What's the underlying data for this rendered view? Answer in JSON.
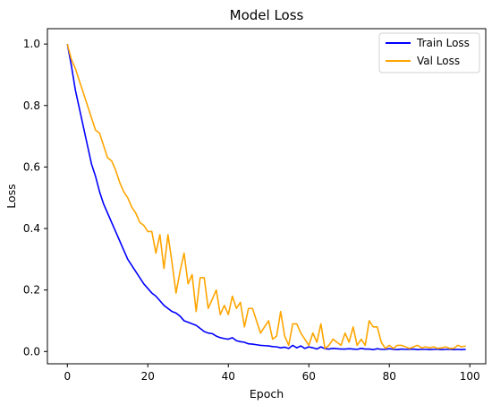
{
  "chart_data": {
    "type": "line",
    "title": "Model Loss",
    "xlabel": "Epoch",
    "ylabel": "Loss",
    "xlim": [
      -4.95,
      103.95
    ],
    "ylim": [
      -0.04,
      1.05
    ],
    "xticks": [
      0,
      20,
      40,
      60,
      80,
      100
    ],
    "yticks": [
      0.0,
      0.2,
      0.4,
      0.6,
      0.8,
      1.0
    ],
    "xtick_labels": [
      "0",
      "20",
      "40",
      "60",
      "80",
      "100"
    ],
    "ytick_labels": [
      "0.0",
      "0.2",
      "0.4",
      "0.6",
      "0.8",
      "1.0"
    ],
    "grid": false,
    "legend_position": "top-right",
    "x": [
      0,
      1,
      2,
      3,
      4,
      5,
      6,
      7,
      8,
      9,
      10,
      11,
      12,
      13,
      14,
      15,
      16,
      17,
      18,
      19,
      20,
      21,
      22,
      23,
      24,
      25,
      26,
      27,
      28,
      29,
      30,
      31,
      32,
      33,
      34,
      35,
      36,
      37,
      38,
      39,
      40,
      41,
      42,
      43,
      44,
      45,
      46,
      47,
      48,
      49,
      50,
      51,
      52,
      53,
      54,
      55,
      56,
      57,
      58,
      59,
      60,
      61,
      62,
      63,
      64,
      65,
      66,
      67,
      68,
      69,
      70,
      71,
      72,
      73,
      74,
      75,
      76,
      77,
      78,
      79,
      80,
      81,
      82,
      83,
      84,
      85,
      86,
      87,
      88,
      89,
      90,
      91,
      92,
      93,
      94,
      95,
      96,
      97,
      98,
      99
    ],
    "series": [
      {
        "name": "Train Loss",
        "color": "#0000ff",
        "values": [
          1.0,
          0.93,
          0.85,
          0.79,
          0.73,
          0.67,
          0.61,
          0.57,
          0.52,
          0.48,
          0.45,
          0.42,
          0.39,
          0.36,
          0.33,
          0.3,
          0.28,
          0.26,
          0.24,
          0.22,
          0.205,
          0.19,
          0.18,
          0.165,
          0.15,
          0.14,
          0.13,
          0.125,
          0.115,
          0.1,
          0.095,
          0.09,
          0.085,
          0.075,
          0.065,
          0.06,
          0.058,
          0.05,
          0.045,
          0.042,
          0.04,
          0.045,
          0.035,
          0.032,
          0.03,
          0.025,
          0.024,
          0.022,
          0.02,
          0.019,
          0.018,
          0.016,
          0.015,
          0.012,
          0.014,
          0.01,
          0.02,
          0.012,
          0.018,
          0.01,
          0.015,
          0.012,
          0.008,
          0.015,
          0.009,
          0.008,
          0.01,
          0.009,
          0.008,
          0.008,
          0.009,
          0.008,
          0.007,
          0.01,
          0.008,
          0.008,
          0.006,
          0.009,
          0.007,
          0.007,
          0.009,
          0.007,
          0.006,
          0.008,
          0.007,
          0.007,
          0.008,
          0.006,
          0.007,
          0.007,
          0.006,
          0.007,
          0.007,
          0.006,
          0.007,
          0.007,
          0.006,
          0.007,
          0.006,
          0.007
        ]
      },
      {
        "name": "Val Loss",
        "color": "#ffa500",
        "values": [
          1.0,
          0.95,
          0.92,
          0.88,
          0.84,
          0.8,
          0.76,
          0.72,
          0.71,
          0.67,
          0.63,
          0.62,
          0.59,
          0.55,
          0.52,
          0.5,
          0.47,
          0.45,
          0.42,
          0.41,
          0.39,
          0.39,
          0.32,
          0.38,
          0.27,
          0.38,
          0.29,
          0.19,
          0.26,
          0.32,
          0.22,
          0.25,
          0.13,
          0.24,
          0.24,
          0.14,
          0.17,
          0.2,
          0.12,
          0.15,
          0.12,
          0.18,
          0.14,
          0.16,
          0.08,
          0.14,
          0.14,
          0.1,
          0.06,
          0.08,
          0.1,
          0.04,
          0.05,
          0.13,
          0.05,
          0.02,
          0.09,
          0.09,
          0.06,
          0.04,
          0.02,
          0.06,
          0.03,
          0.09,
          0.01,
          0.02,
          0.04,
          0.03,
          0.02,
          0.06,
          0.03,
          0.08,
          0.02,
          0.04,
          0.02,
          0.1,
          0.08,
          0.08,
          0.03,
          0.01,
          0.02,
          0.01,
          0.02,
          0.02,
          0.015,
          0.01,
          0.015,
          0.02,
          0.012,
          0.015,
          0.012,
          0.015,
          0.01,
          0.012,
          0.015,
          0.01,
          0.01,
          0.02,
          0.015,
          0.018
        ]
      }
    ]
  }
}
